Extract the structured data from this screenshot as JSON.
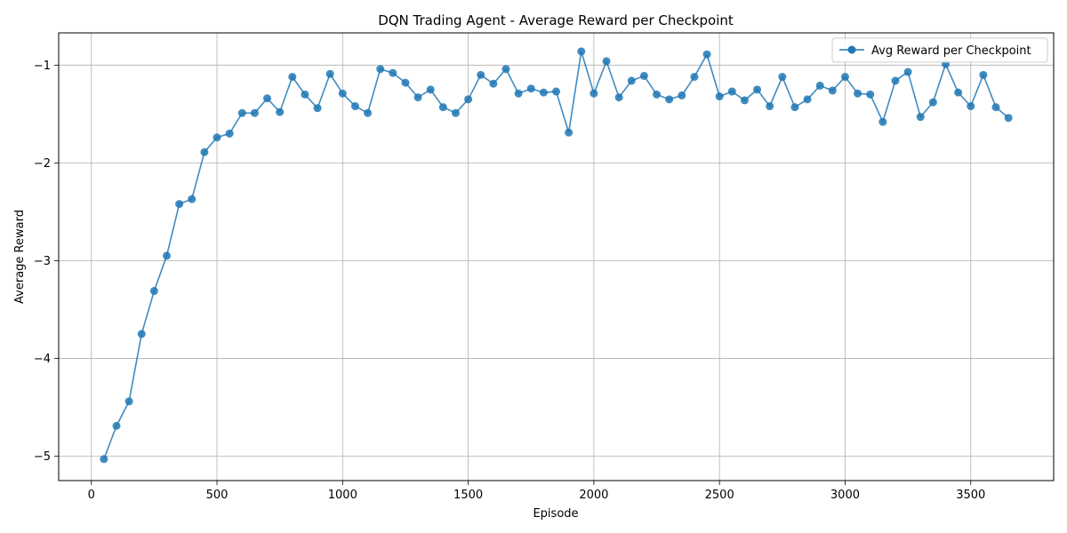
{
  "chart_data": {
    "type": "line",
    "title": "DQN Trading Agent - Average Reward per Checkpoint",
    "xlabel": "Episode",
    "ylabel": "Average Reward",
    "xlim": [
      -130,
      3830
    ],
    "ylim": [
      -5.25,
      -0.67
    ],
    "xticks": [
      0,
      500,
      1000,
      1500,
      2000,
      2500,
      3000,
      3500
    ],
    "yticks": [
      -5,
      -4,
      -3,
      -2,
      -1
    ],
    "ytick_labels": [
      "−5",
      "−4",
      "−3",
      "−2",
      "−1"
    ],
    "grid": true,
    "legend_position": "top-right",
    "series": [
      {
        "name": "Avg Reward per Checkpoint",
        "color": "#1f77b4",
        "marker": "circle",
        "x": [
          50,
          100,
          150,
          200,
          250,
          300,
          350,
          400,
          450,
          500,
          550,
          600,
          650,
          700,
          750,
          800,
          850,
          900,
          950,
          1000,
          1050,
          1100,
          1150,
          1200,
          1250,
          1300,
          1350,
          1400,
          1450,
          1500,
          1550,
          1600,
          1650,
          1700,
          1750,
          1800,
          1850,
          1900,
          1950,
          2000,
          2050,
          2100,
          2150,
          2200,
          2250,
          2300,
          2350,
          2400,
          2450,
          2500,
          2550,
          2600,
          2650,
          2700,
          2750,
          2800,
          2850,
          2900,
          2950,
          3000,
          3050,
          3100,
          3150,
          3200,
          3250,
          3300,
          3350,
          3400,
          3450,
          3500,
          3550,
          3600,
          3650
        ],
        "values": [
          -5.03,
          -4.69,
          -4.44,
          -3.75,
          -3.31,
          -2.95,
          -2.42,
          -2.37,
          -1.89,
          -1.74,
          -1.7,
          -1.49,
          -1.49,
          -1.34,
          -1.48,
          -1.12,
          -1.3,
          -1.44,
          -1.09,
          -1.29,
          -1.42,
          -1.49,
          -1.04,
          -1.08,
          -1.18,
          -1.33,
          -1.25,
          -1.43,
          -1.49,
          -1.35,
          -1.1,
          -1.19,
          -1.04,
          -1.29,
          -1.24,
          -1.28,
          -1.27,
          -1.69,
          -0.86,
          -1.29,
          -0.96,
          -1.33,
          -1.16,
          -1.11,
          -1.3,
          -1.35,
          -1.31,
          -1.12,
          -0.89,
          -1.32,
          -1.27,
          -1.36,
          -1.25,
          -1.42,
          -1.12,
          -1.43,
          -1.35,
          -1.21,
          -1.26,
          -1.12,
          -1.29,
          -1.3,
          -1.58,
          -1.16,
          -1.07,
          -1.53,
          -1.38,
          -0.99,
          -1.28,
          -1.42,
          -1.1,
          -1.43,
          -1.54
        ]
      }
    ]
  }
}
